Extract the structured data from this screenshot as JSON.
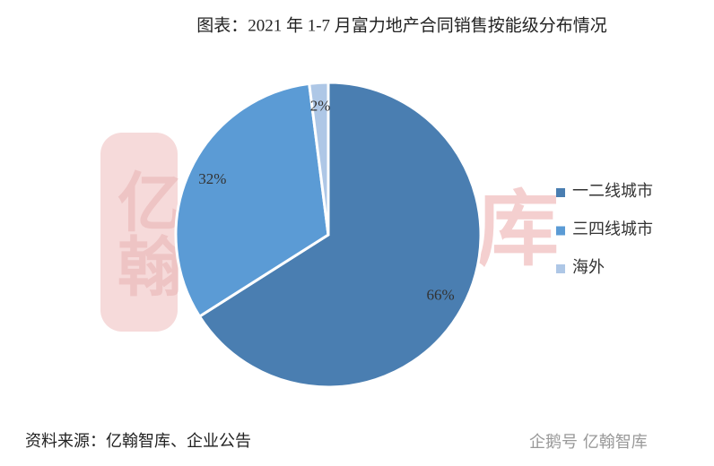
{
  "chart_data": {
    "type": "pie",
    "title": "图表：2021 年 1-7 月富力地产合同销售按能级分布情况",
    "categories": [
      "一二线城市",
      "三四线城市",
      "海外"
    ],
    "values": [
      66,
      32,
      2
    ],
    "value_labels": [
      "66%",
      "32%",
      "2%"
    ],
    "colors": [
      "#4a7eb1",
      "#5b9bd5",
      "#aec7e6"
    ],
    "legend": "right",
    "source": "资料来源：亿翰智库、企业公告",
    "watermark": "亿翰智库",
    "logo": "亿翰",
    "credit": "企鹅号 亿翰智库"
  }
}
